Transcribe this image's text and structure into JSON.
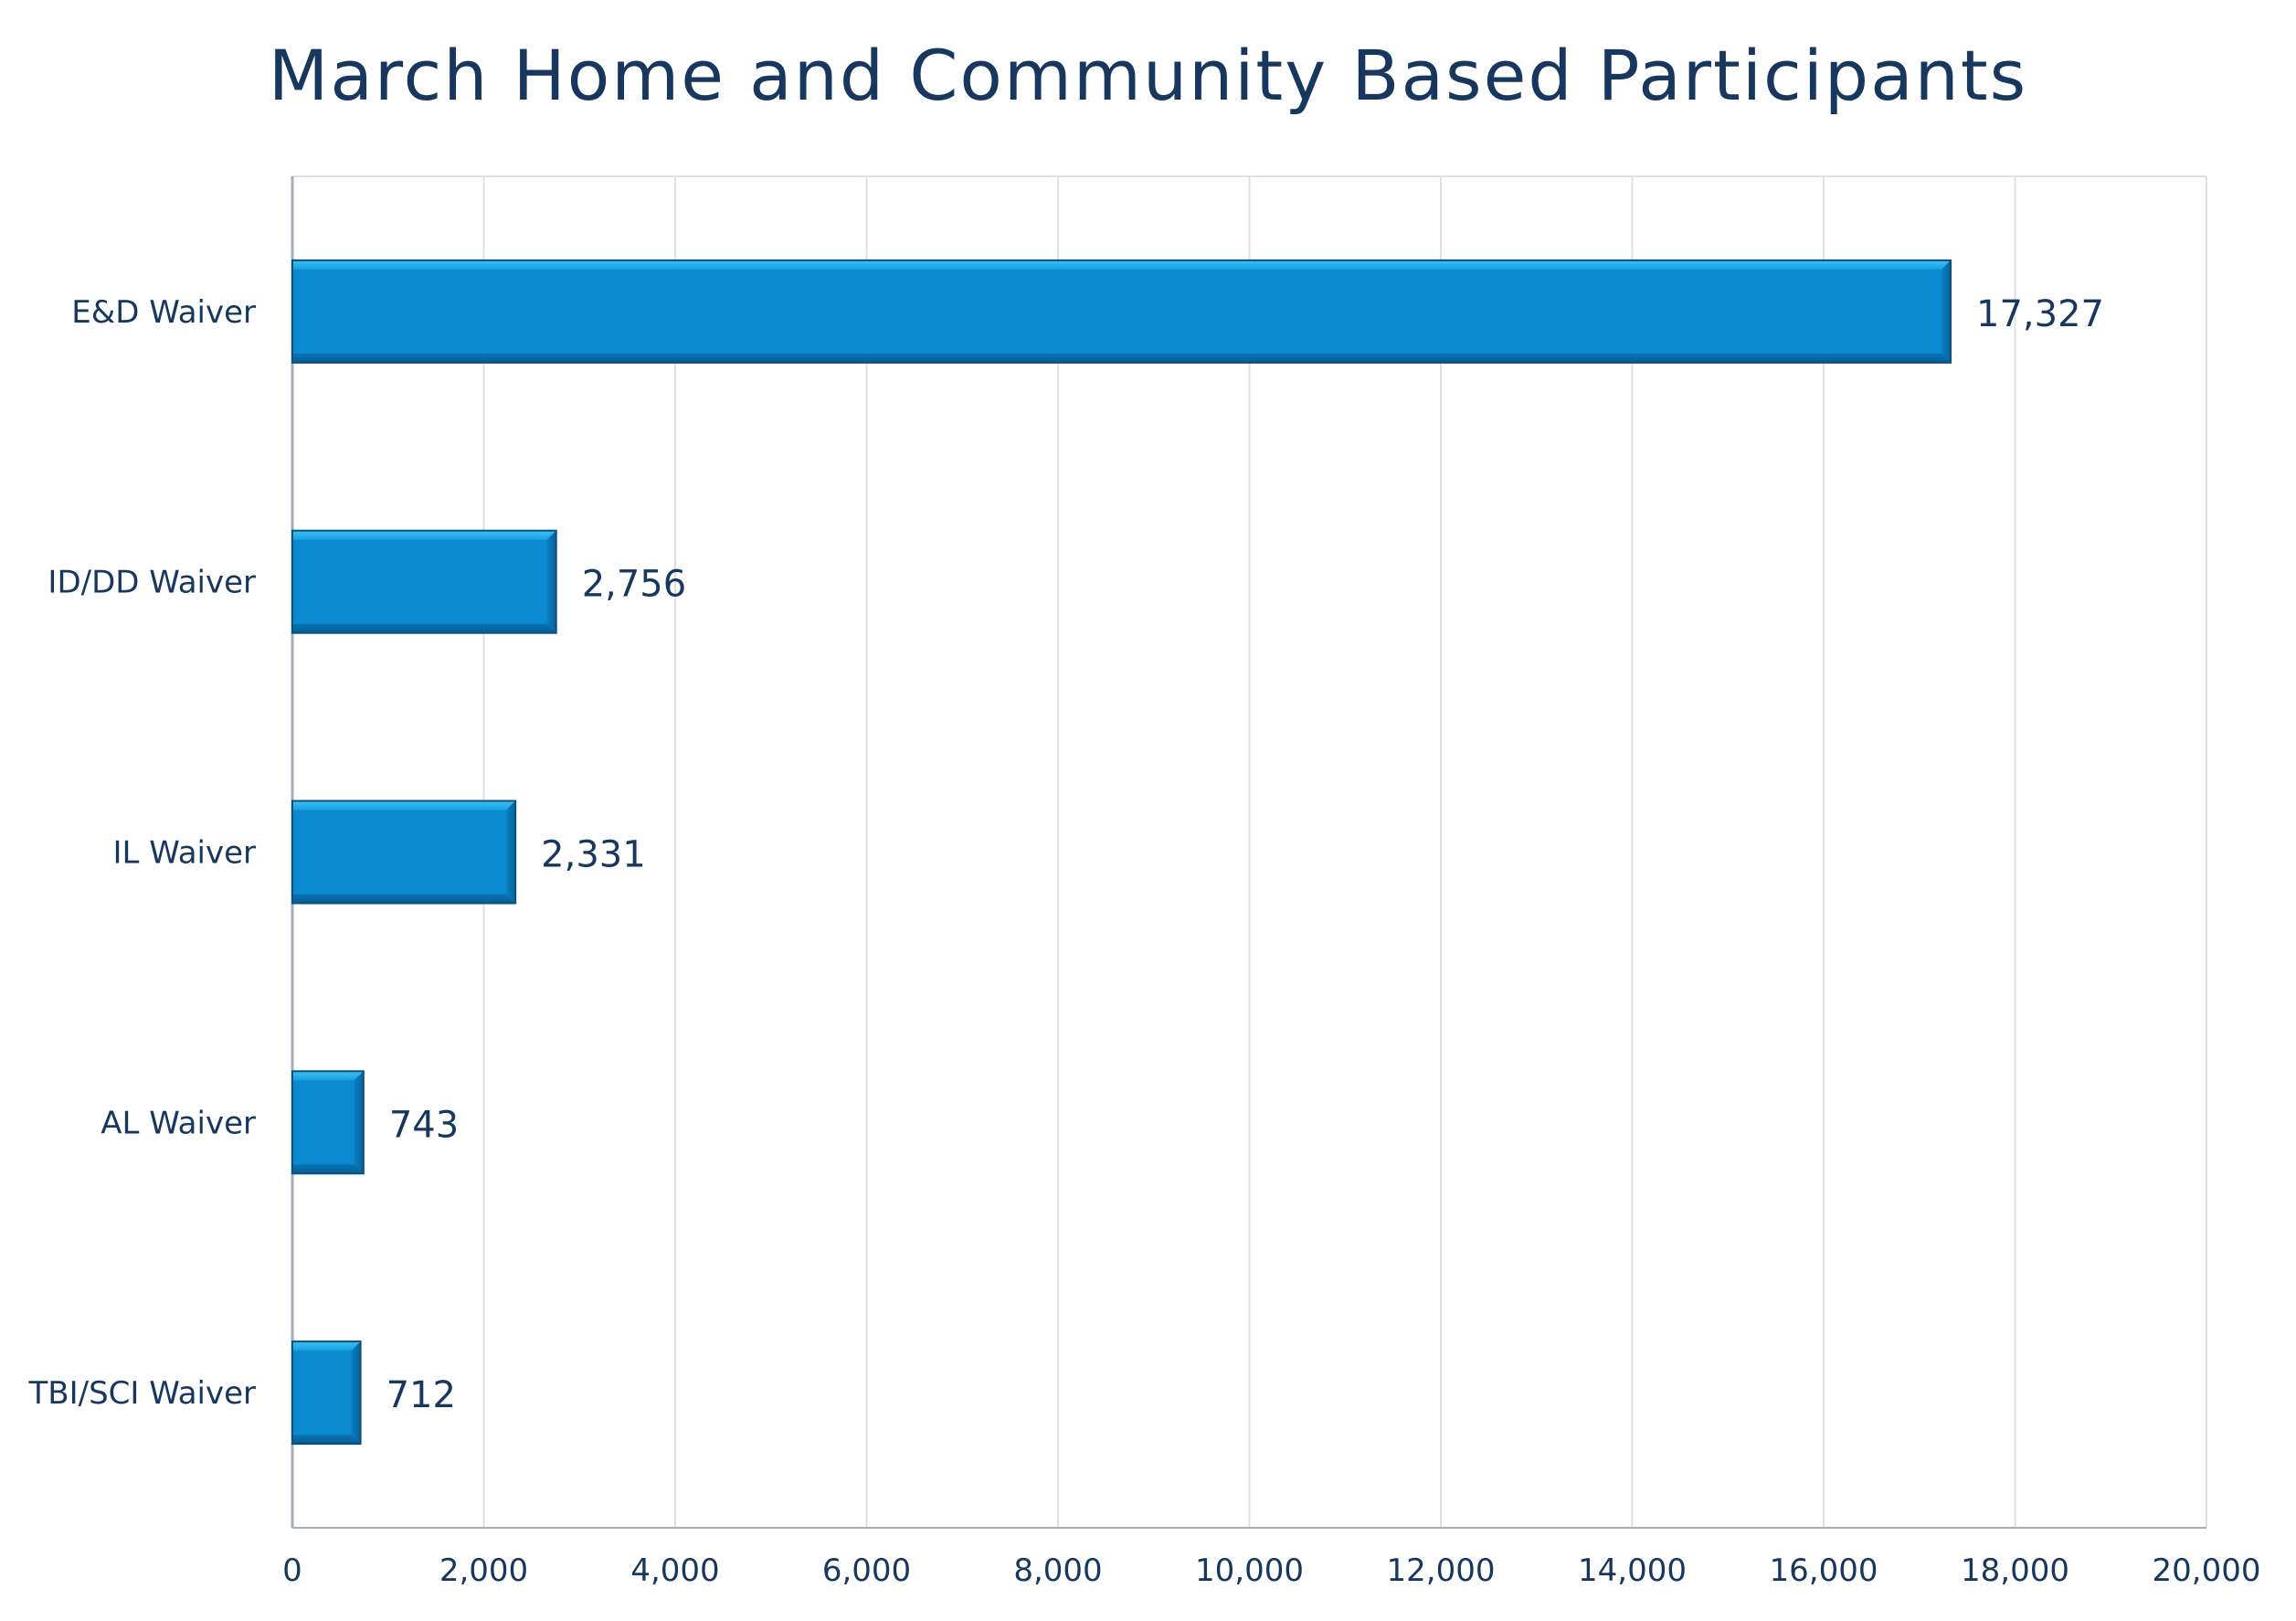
{
  "chart_data": {
    "type": "bar",
    "orientation": "horizontal",
    "title": "March Home and Community Based Participants",
    "xlabel": "",
    "ylabel": "",
    "categories": [
      "E&D Waiver",
      "ID/DD Waiver",
      "IL Waiver",
      "AL Waiver",
      "TBI/SCI Waiver"
    ],
    "values": [
      17327,
      2756,
      2331,
      743,
      712
    ],
    "data_labels": [
      "17,327",
      "2,756",
      "2,331",
      "743",
      "712"
    ],
    "xlim": [
      0,
      20000
    ],
    "x_ticks": [
      0,
      2000,
      4000,
      6000,
      8000,
      10000,
      12000,
      14000,
      16000,
      18000,
      20000
    ],
    "x_tick_labels": [
      "0",
      "2,000",
      "4,000",
      "6,000",
      "8,000",
      "10,000",
      "12,000",
      "14,000",
      "16,000",
      "18,000",
      "20,000"
    ],
    "grid": "vertical",
    "legend": "none",
    "colors": {
      "bar": "#0a8ad0",
      "bar_highlight": "#47c4f3",
      "bar_edge": "#0b4f7d",
      "text": "#17375e",
      "grid": "#dde1e6",
      "axis": "#a6afb8"
    }
  }
}
